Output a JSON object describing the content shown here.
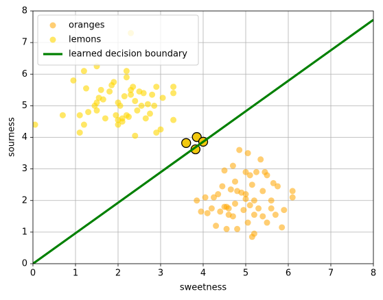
{
  "chart_data": {
    "type": "scatter",
    "xlabel": "sweetness",
    "ylabel": "sourness",
    "xlim": [
      0,
      8
    ],
    "ylim": [
      0,
      8
    ],
    "xticks": [
      0,
      1,
      2,
      3,
      4,
      5,
      6,
      7,
      8
    ],
    "yticks": [
      0,
      1,
      2,
      3,
      4,
      5,
      6,
      7,
      8
    ],
    "grid": true,
    "legend": "upper-left",
    "series": [
      {
        "name": "oranges",
        "type": "scatter",
        "color": "#ffa500",
        "alpha": 0.55,
        "x": [
          3.85,
          3.95,
          4.05,
          4.1,
          4.2,
          4.3,
          4.35,
          4.4,
          4.45,
          4.5,
          4.5,
          4.55,
          4.6,
          4.65,
          4.7,
          4.7,
          4.75,
          4.75,
          4.8,
          4.8,
          4.85,
          4.9,
          4.95,
          5.0,
          5.0,
          5.05,
          5.05,
          5.1,
          5.1,
          5.15,
          5.15,
          5.2,
          5.2,
          5.25,
          5.3,
          5.35,
          5.4,
          5.4,
          5.45,
          5.5,
          5.5,
          5.6,
          5.6,
          5.65,
          5.7,
          5.75,
          5.85,
          5.9,
          6.1,
          6.1,
          4.25,
          4.55,
          5.0,
          5.2,
          4.6
        ],
        "y": [
          2.0,
          1.65,
          2.1,
          1.6,
          1.75,
          1.2,
          2.2,
          1.65,
          2.45,
          2.95,
          1.8,
          1.1,
          1.75,
          2.35,
          3.1,
          1.5,
          2.6,
          1.9,
          2.3,
          1.1,
          3.6,
          2.25,
          1.7,
          2.9,
          2.05,
          3.5,
          1.3,
          2.8,
          1.85,
          2.5,
          0.85,
          2.0,
          1.55,
          2.9,
          1.75,
          3.3,
          2.3,
          1.5,
          2.9,
          2.8,
          1.3,
          2.0,
          1.75,
          2.55,
          1.55,
          2.45,
          1.15,
          1.7,
          2.3,
          2.1,
          2.1,
          1.8,
          2.2,
          0.95,
          1.55
        ]
      },
      {
        "name": "lemons",
        "type": "scatter",
        "color": "#ffd700",
        "alpha": 0.6,
        "x": [
          0.05,
          0.7,
          0.95,
          1.2,
          1.5,
          2.2,
          2.3,
          1.1,
          1.1,
          1.2,
          1.25,
          1.3,
          1.5,
          1.5,
          1.6,
          1.65,
          1.7,
          1.8,
          1.85,
          1.9,
          1.95,
          2.0,
          2.0,
          2.05,
          2.1,
          2.15,
          2.2,
          2.2,
          2.25,
          2.3,
          2.3,
          2.35,
          2.4,
          2.4,
          2.45,
          2.5,
          2.55,
          2.6,
          2.65,
          2.7,
          2.75,
          2.8,
          2.85,
          2.9,
          2.9,
          3.0,
          3.05,
          3.3,
          3.3,
          3.3,
          1.55,
          2.0,
          2.1,
          1.45
        ],
        "y": [
          4.4,
          4.7,
          5.8,
          6.1,
          6.25,
          6.1,
          7.3,
          4.7,
          4.15,
          4.4,
          5.55,
          4.8,
          4.85,
          5.1,
          5.5,
          5.2,
          4.6,
          5.45,
          5.65,
          5.75,
          4.7,
          4.4,
          4.55,
          5.0,
          4.6,
          5.3,
          4.7,
          5.9,
          4.65,
          5.35,
          5.5,
          5.6,
          5.15,
          4.05,
          4.85,
          5.45,
          5.0,
          5.4,
          4.6,
          5.05,
          4.75,
          5.35,
          5.0,
          4.15,
          5.6,
          4.25,
          5.25,
          5.6,
          5.4,
          4.55,
          5.25,
          5.1,
          4.5,
          5.0
        ]
      },
      {
        "type": "scatter",
        "color": "#f2c80f",
        "edgecolor": "#000000",
        "alpha": 1,
        "x": [
          3.6,
          3.85,
          4.0,
          3.82
        ],
        "y": [
          3.82,
          4.01,
          3.86,
          3.62
        ]
      },
      {
        "name": "learned decision boundary",
        "type": "line",
        "color": "#008000",
        "x": [
          0,
          8
        ],
        "y": [
          0,
          7.72
        ]
      }
    ]
  }
}
